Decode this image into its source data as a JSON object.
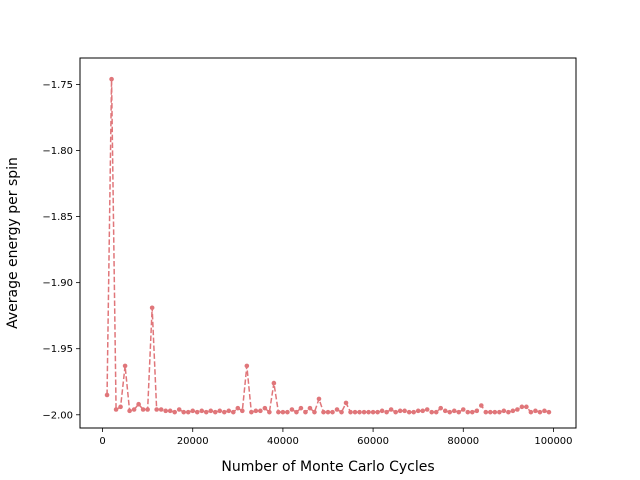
{
  "chart_data": {
    "type": "line",
    "title": "",
    "xlabel": "Number of Monte Carlo Cycles",
    "ylabel": "Average energy per spin",
    "xlim": [
      -5000,
      105000
    ],
    "ylim": [
      -2.01,
      -1.73
    ],
    "xticks": [
      0,
      20000,
      40000,
      60000,
      80000,
      100000
    ],
    "xtick_labels": [
      "0",
      "20000",
      "40000",
      "60000",
      "80000",
      "100000"
    ],
    "yticks": [
      -2.0,
      -1.95,
      -1.9,
      -1.85,
      -1.8,
      -1.75
    ],
    "ytick_labels": [
      "−2.00",
      "−1.95",
      "−1.90",
      "−1.85",
      "−1.80",
      "−1.75"
    ],
    "grid": false,
    "color": "#e0767a",
    "line_style": "dashed",
    "marker": "circle",
    "series": [
      {
        "x": [
          1000,
          2000,
          3000,
          4000,
          5000,
          6000,
          7000,
          8000,
          9000,
          10000,
          11000,
          12000,
          13000,
          14000,
          15000,
          16000,
          17000,
          18000,
          19000,
          20000,
          21000,
          22000,
          23000,
          24000,
          25000,
          26000,
          27000,
          28000,
          29000,
          30000,
          31000,
          32000,
          33000,
          34000,
          35000,
          36000,
          37000,
          38000,
          39000,
          40000,
          41000,
          42000,
          43000,
          44000,
          45000,
          46000,
          47000,
          48000,
          49000,
          50000,
          51000,
          52000,
          53000,
          54000,
          55000,
          56000,
          57000,
          58000,
          59000,
          60000,
          61000,
          62000,
          63000,
          64000,
          65000,
          66000,
          67000,
          68000,
          69000,
          70000,
          71000,
          72000,
          73000,
          74000,
          75000,
          76000,
          77000,
          78000,
          79000,
          80000,
          81000,
          82000,
          83000,
          84000,
          85000,
          86000,
          87000,
          88000,
          89000,
          90000,
          91000,
          92000,
          93000,
          94000,
          95000,
          96000,
          97000,
          98000,
          99000
        ],
        "y": [
          -1.985,
          -1.746,
          -1.996,
          -1.994,
          -1.963,
          -1.997,
          -1.996,
          -1.992,
          -1.996,
          -1.996,
          -1.919,
          -1.996,
          -1.996,
          -1.997,
          -1.997,
          -1.998,
          -1.996,
          -1.998,
          -1.998,
          -1.997,
          -1.998,
          -1.997,
          -1.998,
          -1.997,
          -1.998,
          -1.997,
          -1.998,
          -1.997,
          -1.998,
          -1.995,
          -1.997,
          -1.963,
          -1.998,
          -1.997,
          -1.997,
          -1.995,
          -1.998,
          -1.976,
          -1.998,
          -1.998,
          -1.998,
          -1.996,
          -1.998,
          -1.995,
          -1.998,
          -1.995,
          -1.998,
          -1.988,
          -1.998,
          -1.998,
          -1.998,
          -1.996,
          -1.998,
          -1.991,
          -1.998,
          -1.998,
          -1.998,
          -1.998,
          -1.998,
          -1.998,
          -1.998,
          -1.997,
          -1.998,
          -1.996,
          -1.998,
          -1.997,
          -1.997,
          -1.998,
          -1.998,
          -1.997,
          -1.997,
          -1.996,
          -1.998,
          -1.998,
          -1.995,
          -1.997,
          -1.998,
          -1.997,
          -1.998,
          -1.996,
          -1.998,
          -1.998,
          -1.997,
          -1.993,
          -1.998,
          -1.998,
          -1.998,
          -1.998,
          -1.997,
          -1.998,
          -1.997,
          -1.996,
          -1.994,
          -1.994,
          -1.998,
          -1.997,
          -1.998,
          -1.997,
          -1.998
        ]
      }
    ]
  }
}
